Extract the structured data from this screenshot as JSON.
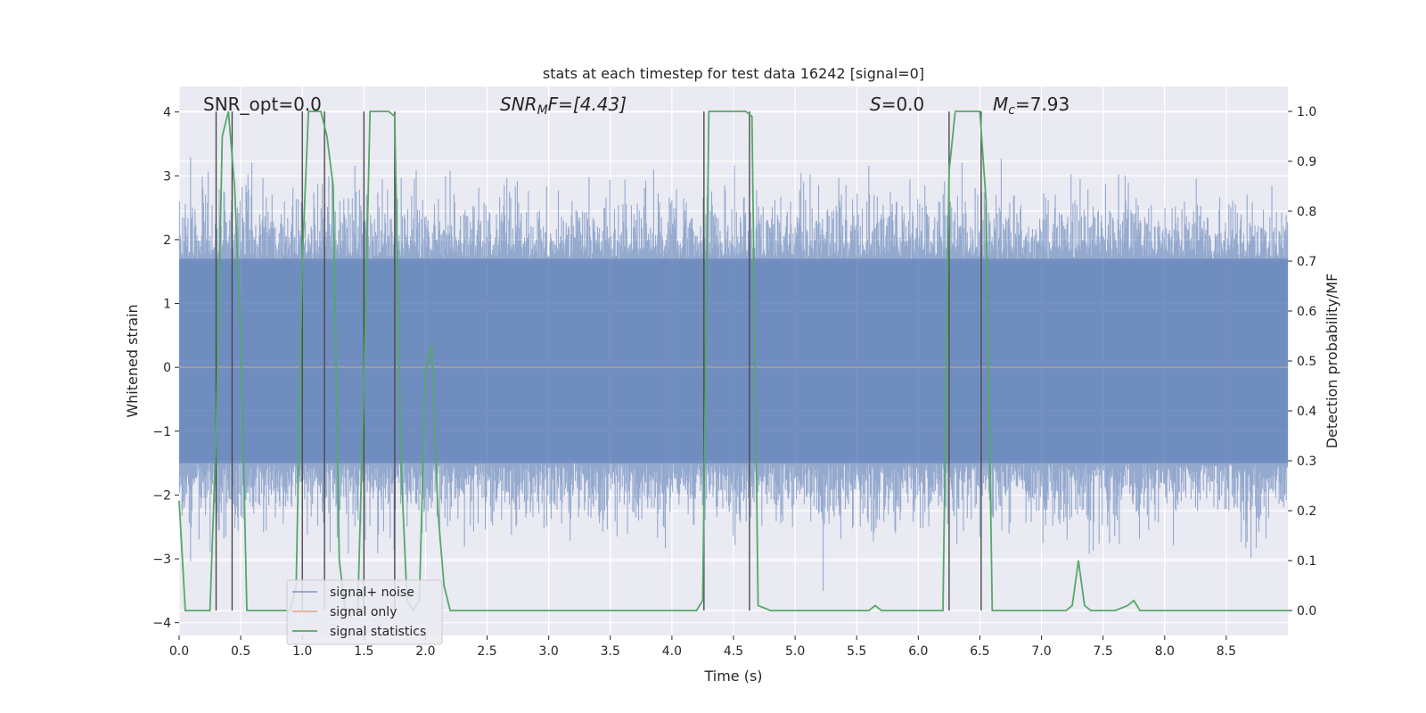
{
  "chart_data": {
    "type": "line",
    "title": "stats at each timestep for test data 16242 [signal=0]",
    "xlabel": "Time (s)",
    "ylabel": "Whitened strain",
    "ylabel_right": "Detection probability/MF",
    "xlim": [
      0.0,
      9.0
    ],
    "ylim": [
      -4.2,
      4.4
    ],
    "ylim_right": [
      -0.05,
      1.05
    ],
    "xticks": [
      0.0,
      0.5,
      1.0,
      1.5,
      2.0,
      2.5,
      3.0,
      3.5,
      4.0,
      4.5,
      5.0,
      5.5,
      6.0,
      6.5,
      7.0,
      7.5,
      8.0,
      8.5
    ],
    "xtick_labels": [
      "0.0",
      "0.5",
      "1.0",
      "1.5",
      "2.0",
      "2.5",
      "3.0",
      "3.5",
      "4.0",
      "4.5",
      "5.0",
      "5.5",
      "6.0",
      "6.5",
      "7.0",
      "7.5",
      "8.0",
      "8.5"
    ],
    "yticks": [
      -4,
      -3,
      -2,
      -1,
      0,
      1,
      2,
      3,
      4
    ],
    "ytick_labels": [
      "−4",
      "−3",
      "−2",
      "−1",
      "0",
      "1",
      "2",
      "3",
      "4"
    ],
    "yticks_right": [
      0.0,
      0.1,
      0.2,
      0.3,
      0.4,
      0.5,
      0.6,
      0.7,
      0.8,
      0.9,
      1.0
    ],
    "ytick_labels_right": [
      "0.0",
      "0.1",
      "0.2",
      "0.3",
      "0.4",
      "0.5",
      "0.6",
      "0.7",
      "0.8",
      "0.9",
      "1.0"
    ],
    "grid": true,
    "annotations": [
      {
        "text": "SNR_opt=0.0",
        "x": 0.2,
        "y": 4.1
      },
      {
        "text": "SNR_MF=[4.43]",
        "x": 2.6,
        "y": 4.1
      },
      {
        "text": "S=0.0",
        "x": 5.6,
        "y": 4.1
      },
      {
        "text": "M_c=7.93",
        "x": 6.6,
        "y": 4.1
      }
    ],
    "annotation_labels": {
      "snr_opt": "SNR_opt=0.0",
      "snr_mf_main": "SNR",
      "snr_mf_sub": "M",
      "snr_mf_rest": "F=[4.43]",
      "s_main": "S",
      "s_rest": "=0.0",
      "mc_main": "M",
      "mc_sub": "c",
      "mc_rest": "=7.93"
    },
    "legend": {
      "placement": "lower-left",
      "entries": [
        {
          "label": "signal+ noise",
          "color": "#4c72b0"
        },
        {
          "label": "signal only",
          "color": "#dd8452"
        },
        {
          "label": "signal statistics",
          "color": "#55a868"
        }
      ]
    },
    "series": [
      {
        "name": "signal+ noise",
        "axis": "left",
        "kind": "noise",
        "color": "#4c72b0",
        "alpha": 0.5,
        "dense_band": [
          -1.5,
          1.7
        ],
        "typical_extent": [
          -2.5,
          2.6
        ],
        "peak_extent": [
          -3.5,
          3.7
        ]
      },
      {
        "name": "signal only",
        "axis": "left",
        "color": "#dd8452",
        "x": [
          0.0,
          9.0
        ],
        "y": [
          0.0,
          0.0
        ]
      },
      {
        "name": "signal statistics",
        "axis": "right",
        "color": "#55a868",
        "x": [
          0.0,
          0.05,
          0.1,
          0.2,
          0.25,
          0.3,
          0.35,
          0.4,
          0.45,
          0.5,
          0.55,
          0.6,
          0.7,
          0.8,
          0.9,
          0.95,
          1.0,
          1.05,
          1.1,
          1.15,
          1.2,
          1.25,
          1.3,
          1.35,
          1.4,
          1.45,
          1.5,
          1.55,
          1.6,
          1.7,
          1.75,
          1.8,
          1.85,
          1.9,
          1.95,
          2.0,
          2.05,
          2.1,
          2.15,
          2.2,
          2.5,
          3.0,
          3.5,
          4.0,
          4.2,
          4.25,
          4.3,
          4.35,
          4.5,
          4.6,
          4.65,
          4.7,
          4.8,
          5.0,
          5.5,
          5.6,
          5.65,
          5.7,
          5.75,
          5.8,
          6.0,
          6.15,
          6.2,
          6.25,
          6.3,
          6.35,
          6.5,
          6.55,
          6.6,
          6.65,
          6.7,
          6.8,
          7.0,
          7.2,
          7.25,
          7.3,
          7.35,
          7.4,
          7.5,
          7.6,
          7.7,
          7.75,
          7.8,
          7.9,
          8.0,
          8.5,
          9.0
        ],
        "y": [
          0.22,
          0.0,
          0.0,
          0.0,
          0.0,
          0.35,
          0.95,
          1.0,
          0.85,
          0.55,
          0.0,
          0.0,
          0.0,
          0.0,
          0.0,
          0.05,
          0.7,
          1.0,
          1.0,
          1.0,
          0.95,
          0.85,
          0.1,
          0.0,
          0.0,
          0.0,
          0.45,
          1.0,
          1.0,
          1.0,
          0.99,
          0.3,
          0.02,
          0.0,
          0.02,
          0.48,
          0.53,
          0.2,
          0.05,
          0.0,
          0.0,
          0.0,
          0.0,
          0.0,
          0.0,
          0.02,
          1.0,
          1.0,
          1.0,
          1.0,
          0.99,
          0.01,
          0.0,
          0.0,
          0.0,
          0.0,
          0.01,
          0.0,
          0.0,
          0.0,
          0.0,
          0.0,
          0.0,
          0.88,
          1.0,
          1.0,
          1.0,
          0.82,
          0.0,
          0.0,
          0.0,
          0.0,
          0.0,
          0.0,
          0.01,
          0.1,
          0.01,
          0.0,
          0.0,
          0.0,
          0.01,
          0.02,
          0.0,
          0.0,
          0.0,
          0.0,
          0.0
        ]
      }
    ],
    "vertical_markers": [
      0.3,
      0.43,
      1.0,
      1.18,
      1.5,
      1.75,
      4.26,
      4.63,
      6.25,
      6.51
    ]
  }
}
